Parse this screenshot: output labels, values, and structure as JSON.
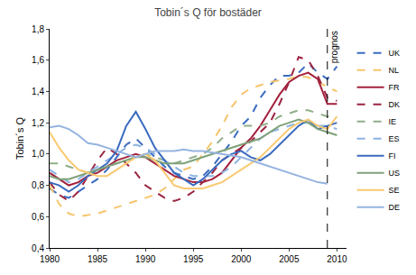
{
  "chart_data": {
    "type": "line",
    "title": "Tobin´s Q för bostäder",
    "y_label": "Tobin´s Q",
    "x": [
      1980,
      1981,
      1982,
      1983,
      1984,
      1985,
      1986,
      1987,
      1988,
      1989,
      1990,
      1991,
      1992,
      1993,
      1994,
      1995,
      1996,
      1997,
      1998,
      1999,
      2000,
      2001,
      2002,
      2003,
      2004,
      2005,
      2006,
      2007,
      2008,
      2009,
      2010
    ],
    "series": [
      {
        "name": "UK",
        "color": "#3c6cc0",
        "line_style": "dash",
        "values": [
          0.78,
          0.74,
          0.72,
          0.76,
          0.8,
          0.84,
          0.9,
          0.98,
          1.06,
          1.1,
          1.04,
          0.98,
          0.92,
          0.88,
          0.86,
          0.84,
          0.86,
          0.92,
          1.0,
          1.08,
          1.18,
          1.24,
          1.36,
          1.44,
          1.5,
          1.5,
          1.52,
          1.58,
          1.52,
          1.48,
          1.56
        ]
      },
      {
        "name": "NL",
        "color": "#f6c56e",
        "line_style": "dash",
        "values": [
          0.8,
          0.68,
          0.62,
          0.6,
          0.61,
          0.62,
          0.64,
          0.66,
          0.68,
          0.7,
          0.72,
          0.74,
          0.78,
          0.84,
          0.9,
          0.92,
          1.0,
          1.08,
          1.18,
          1.3,
          1.38,
          1.42,
          1.44,
          1.46,
          1.47,
          1.48,
          1.5,
          1.49,
          1.46,
          1.43,
          1.4
        ]
      },
      {
        "name": "FR",
        "color": "#a3203c",
        "line_style": "solid",
        "values": [
          0.88,
          0.84,
          0.8,
          0.82,
          0.86,
          0.88,
          0.92,
          0.96,
          0.98,
          1.0,
          0.98,
          0.94,
          0.9,
          0.86,
          0.84,
          0.82,
          0.82,
          0.84,
          0.88,
          0.96,
          1.04,
          1.1,
          1.18,
          1.28,
          1.38,
          1.46,
          1.5,
          1.52,
          1.48,
          1.32,
          1.32
        ]
      },
      {
        "name": "DK",
        "color": "#9a2440",
        "line_style": "dash",
        "values": [
          0.82,
          0.74,
          0.7,
          0.76,
          0.86,
          0.96,
          1.04,
          1.0,
          0.94,
          0.88,
          0.8,
          0.76,
          0.72,
          0.7,
          0.72,
          0.76,
          0.82,
          0.88,
          0.96,
          1.0,
          1.04,
          1.08,
          1.14,
          1.2,
          1.32,
          1.46,
          1.62,
          1.6,
          1.5,
          1.36,
          1.34
        ]
      },
      {
        "name": "IE",
        "color": "#8fae88",
        "line_style": "dash",
        "values": [
          0.94,
          0.94,
          0.92,
          0.9,
          0.88,
          0.9,
          0.92,
          0.94,
          0.96,
          0.98,
          1.0,
          0.98,
          0.96,
          0.94,
          0.96,
          0.98,
          1.0,
          1.04,
          1.1,
          1.14,
          1.18,
          1.18,
          1.18,
          1.2,
          1.24,
          1.26,
          1.28,
          1.28,
          1.26,
          1.24,
          1.24
        ]
      },
      {
        "name": "ES",
        "color": "#8db3e2",
        "line_style": "dash",
        "values": [
          0.9,
          0.86,
          0.82,
          0.84,
          0.88,
          0.92,
          0.96,
          1.0,
          1.04,
          1.06,
          1.04,
          1.0,
          0.96,
          0.92,
          0.88,
          0.86,
          0.86,
          0.86,
          0.88,
          0.92,
          0.98,
          1.04,
          1.1,
          1.14,
          1.16,
          1.18,
          1.2,
          1.2,
          1.18,
          1.18,
          1.16
        ]
      },
      {
        "name": "FI",
        "color": "#3a6bbf",
        "line_style": "solid",
        "values": [
          0.82,
          0.8,
          0.76,
          0.8,
          0.86,
          0.9,
          0.94,
          1.02,
          1.18,
          1.27,
          1.16,
          1.04,
          0.96,
          0.88,
          0.84,
          0.8,
          0.84,
          0.9,
          0.96,
          1.0,
          1.02,
          0.98,
          0.96,
          1.0,
          1.06,
          1.12,
          1.18,
          1.22,
          1.16,
          1.18,
          1.2
        ]
      },
      {
        "name": "US",
        "color": "#7ea279",
        "line_style": "solid",
        "values": [
          0.86,
          0.84,
          0.84,
          0.86,
          0.88,
          0.9,
          0.92,
          0.94,
          0.96,
          0.98,
          0.98,
          0.96,
          0.94,
          0.94,
          0.94,
          0.96,
          0.98,
          1.0,
          1.02,
          1.04,
          1.06,
          1.08,
          1.1,
          1.14,
          1.18,
          1.2,
          1.22,
          1.2,
          1.16,
          1.14,
          1.12
        ]
      },
      {
        "name": "SE",
        "color": "#f9c971",
        "line_style": "solid",
        "values": [
          1.14,
          1.04,
          0.96,
          0.9,
          0.88,
          0.86,
          0.86,
          0.9,
          0.94,
          0.98,
          1.0,
          0.96,
          0.88,
          0.8,
          0.78,
          0.78,
          0.78,
          0.8,
          0.82,
          0.86,
          0.9,
          0.94,
          0.98,
          1.04,
          1.1,
          1.16,
          1.2,
          1.22,
          1.18,
          1.16,
          1.24
        ]
      },
      {
        "name": "DE",
        "color": "#95b4e0",
        "line_style": "solid",
        "values": [
          1.17,
          1.18,
          1.16,
          1.12,
          1.07,
          1.06,
          1.04,
          1.02,
          1.0,
          0.98,
          1.0,
          1.02,
          1.02,
          1.02,
          1.03,
          1.02,
          1.02,
          1.01,
          1.0,
          0.99,
          0.98,
          0.96,
          0.94,
          0.92,
          0.9,
          0.88,
          0.86,
          0.84,
          0.82,
          0.81,
          null
        ]
      }
    ],
    "annotations": [
      {
        "text": "prognos",
        "x": 2009
      }
    ],
    "xlim": [
      1980,
      2011
    ],
    "xticks": [
      1980,
      1985,
      1990,
      1995,
      2000,
      2005,
      2010
    ],
    "ylim": [
      0.4,
      1.8
    ],
    "yticks": [
      {
        "value": 0.4,
        "label": "0,4"
      },
      {
        "value": 0.6,
        "label": "0,6"
      },
      {
        "value": 0.8,
        "label": "0,8"
      },
      {
        "value": 1.0,
        "label": "1,0"
      },
      {
        "value": 1.2,
        "label": "1,2"
      },
      {
        "value": 1.4,
        "label": "1,4"
      },
      {
        "value": 1.6,
        "label": "1,6"
      },
      {
        "value": 1.8,
        "label": "1,8"
      }
    ],
    "grid": false,
    "legend": "right"
  }
}
